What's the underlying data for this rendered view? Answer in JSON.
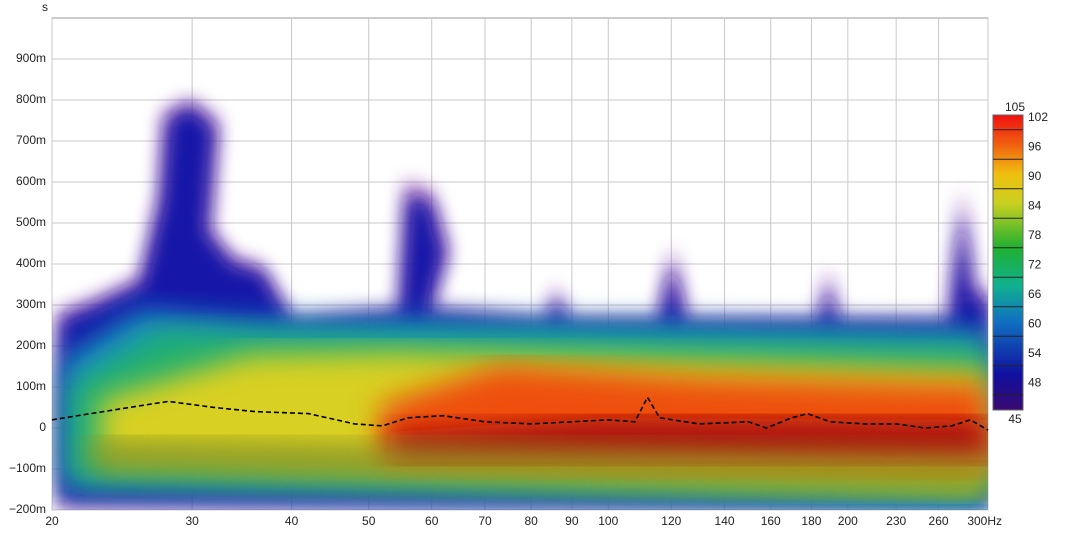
{
  "chart_data": {
    "type": "line",
    "y_unit": "s",
    "xscale": "log",
    "xlim": [
      20,
      300
    ],
    "xticks": [
      20,
      30,
      40,
      50,
      60,
      70,
      80,
      90,
      100,
      120,
      140,
      160,
      180,
      200,
      230,
      260,
      {
        "value": 300,
        "label": "300Hz"
      }
    ],
    "ylim": [
      -0.2,
      1.0
    ],
    "yticks": [
      {
        "value": -0.2,
        "label": "−200m"
      },
      {
        "value": -0.1,
        "label": "−100m"
      },
      0,
      {
        "value": 0.1,
        "label": "100m"
      },
      {
        "value": 0.2,
        "label": "200m"
      },
      {
        "value": 0.3,
        "label": "300m"
      },
      {
        "value": 0.4,
        "label": "400m"
      },
      {
        "value": 0.5,
        "label": "500m"
      },
      {
        "value": 0.6,
        "label": "600m"
      },
      {
        "value": 0.7,
        "label": "700m"
      },
      {
        "value": 0.8,
        "label": "800m"
      },
      {
        "value": 0.9,
        "label": "900m"
      }
    ],
    "grid": true,
    "x": [
      20,
      25,
      28,
      32,
      36,
      42,
      48,
      52,
      56,
      62,
      70,
      80,
      90,
      100,
      108,
      112,
      116,
      130,
      150,
      158,
      170,
      178,
      190,
      210,
      230,
      250,
      270,
      285,
      300
    ],
    "series": [
      {
        "color": "#000000",
        "values": [
          0.02,
          0.05,
          0.065,
          0.05,
          0.04,
          0.035,
          0.01,
          0.005,
          0.025,
          0.03,
          0.015,
          0.01,
          0.015,
          0.02,
          0.015,
          0.075,
          0.025,
          0.01,
          0.015,
          0.0,
          0.025,
          0.035,
          0.015,
          0.01,
          0.01,
          0.0,
          0.005,
          0.02,
          -0.005
        ]
      }
    ],
    "colorbar": {
      "range": [
        45,
        105
      ],
      "ticks": [
        48,
        54,
        60,
        66,
        72,
        78,
        84,
        90,
        96,
        102
      ]
    }
  }
}
